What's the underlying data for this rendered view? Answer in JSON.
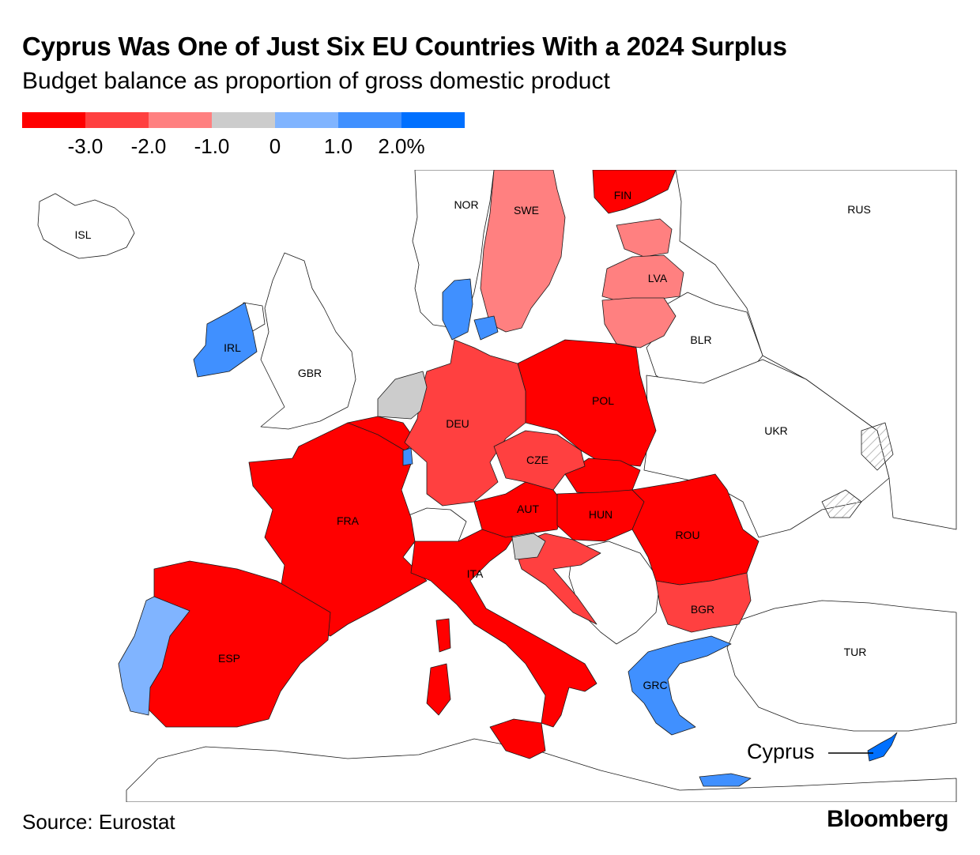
{
  "title": "Cyprus Was One of Just Six EU Countries With a 2024 Surplus",
  "subtitle": "Budget balance as proportion of gross domestic product",
  "legend": {
    "colors": [
      "#ff0000",
      "#ff4040",
      "#ff8080",
      "#cccccc",
      "#80b4ff",
      "#4090ff",
      "#0070ff"
    ],
    "ticks": [
      "-3.0",
      "-2.0",
      "-1.0",
      "0",
      "1.0",
      "2.0%"
    ]
  },
  "map": {
    "colors": {
      "deep_red": "#ff0000",
      "red": "#ff4040",
      "light_red": "#ff8080",
      "gray": "#cccccc",
      "light_blue": "#80b4ff",
      "blue": "#4090ff",
      "deep_blue": "#0070ff",
      "non_eu": "#ffffff"
    },
    "labels": {
      "isl": "ISL",
      "nor": "NOR",
      "swe": "SWE",
      "fin": "FIN",
      "rus": "RUS",
      "lva": "LVA",
      "blr": "BLR",
      "irl": "IRL",
      "gbr": "GBR",
      "deu": "DEU",
      "pol": "POL",
      "ukr": "UKR",
      "cze": "CZE",
      "fra": "FRA",
      "aut": "AUT",
      "hun": "HUN",
      "rou": "ROU",
      "ita": "ITA",
      "bgr": "BGR",
      "esp": "ESP",
      "tur": "TUR",
      "grc": "GRC"
    },
    "callout": "Cyprus"
  },
  "source": "Source: Eurostat",
  "brand": "Bloomberg"
}
